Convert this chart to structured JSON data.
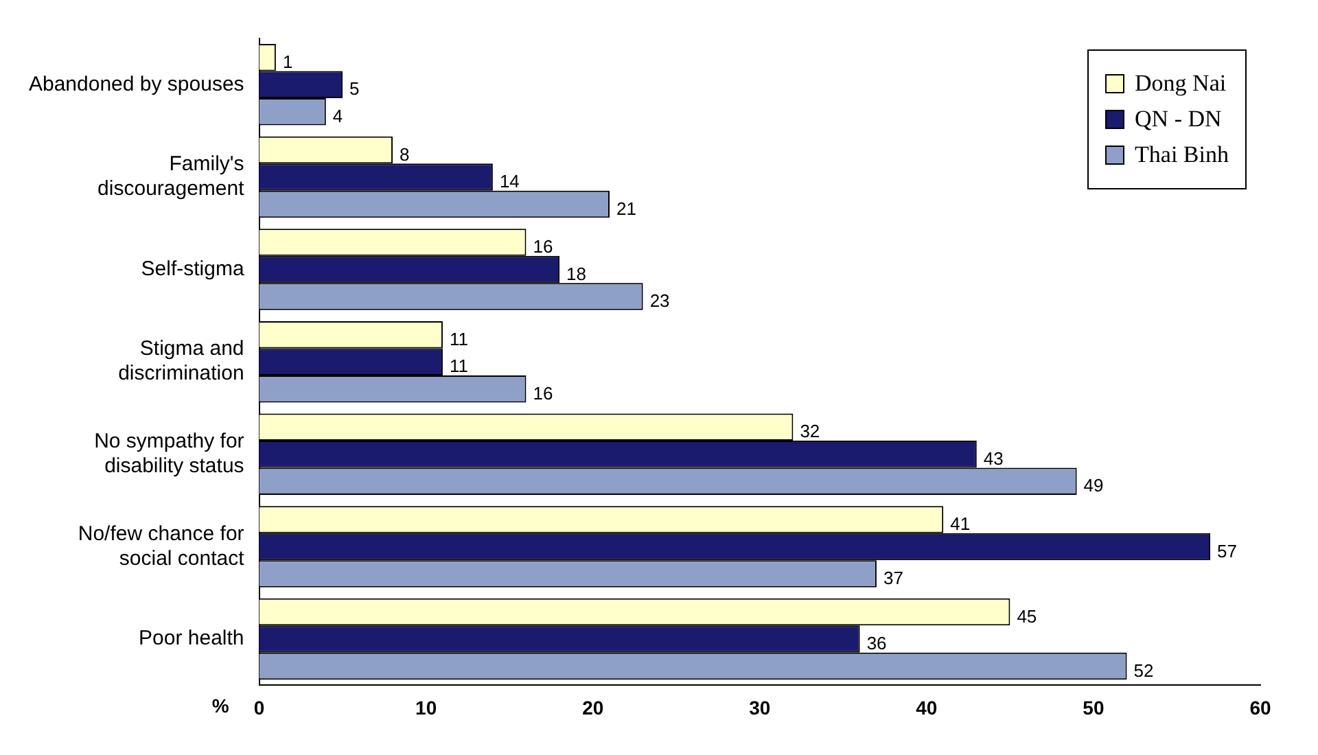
{
  "chart_data": {
    "type": "bar",
    "orientation": "horizontal",
    "xlabel": "%",
    "categories": [
      "Abandoned by spouses",
      "Family's discouragement",
      "Self-stigma",
      "Stigma and discrimination",
      "No sympathy for disability status",
      "No/few chance for social contact",
      "Poor health"
    ],
    "series": [
      {
        "name": "Dong Nai",
        "color": "#ffffcc",
        "values": [
          1,
          8,
          16,
          11,
          32,
          41,
          45
        ]
      },
      {
        "name": "QN - DN",
        "color": "#1a1a6e",
        "values": [
          5,
          14,
          18,
          11,
          43,
          57,
          36
        ]
      },
      {
        "name": "Thai Binh",
        "color": "#8fa0c8",
        "values": [
          4,
          21,
          23,
          16,
          49,
          37,
          52
        ]
      }
    ],
    "xlim": [
      0,
      60
    ],
    "xticks": [
      0,
      10,
      20,
      30,
      40,
      50,
      60
    ],
    "grid": false,
    "legend": "top right",
    "data_labels": true
  }
}
